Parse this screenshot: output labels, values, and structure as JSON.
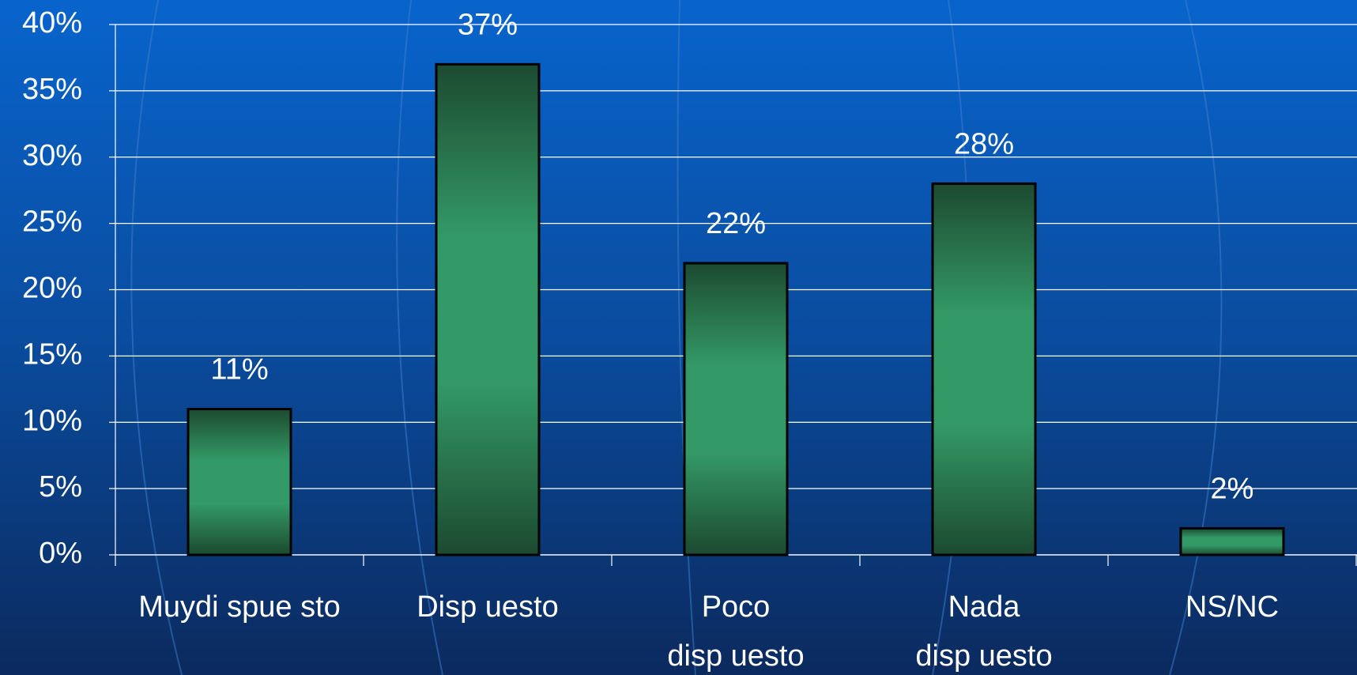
{
  "chart_data": {
    "type": "bar",
    "categories": [
      "Muydi spue sto",
      "Disp uesto",
      "Poco\ndisp uesto",
      "Nada\ndisp uesto",
      "NS/NC"
    ],
    "values": [
      11,
      37,
      22,
      28,
      2
    ],
    "value_labels": [
      "11%",
      "37%",
      "22%",
      "28%",
      "2%"
    ],
    "color": "#339966",
    "ylim": [
      0,
      40
    ],
    "yticks": [
      {
        "value": 0,
        "label": "0%"
      },
      {
        "value": 5,
        "label": "5%"
      },
      {
        "value": 10,
        "label": "10%"
      },
      {
        "value": 15,
        "label": "15%"
      },
      {
        "value": 20,
        "label": "20%"
      },
      {
        "value": 25,
        "label": "25%"
      },
      {
        "value": 30,
        "label": "30%"
      },
      {
        "value": 35,
        "label": "35%"
      },
      {
        "value": 40,
        "label": "40%"
      }
    ],
    "grid": true
  }
}
